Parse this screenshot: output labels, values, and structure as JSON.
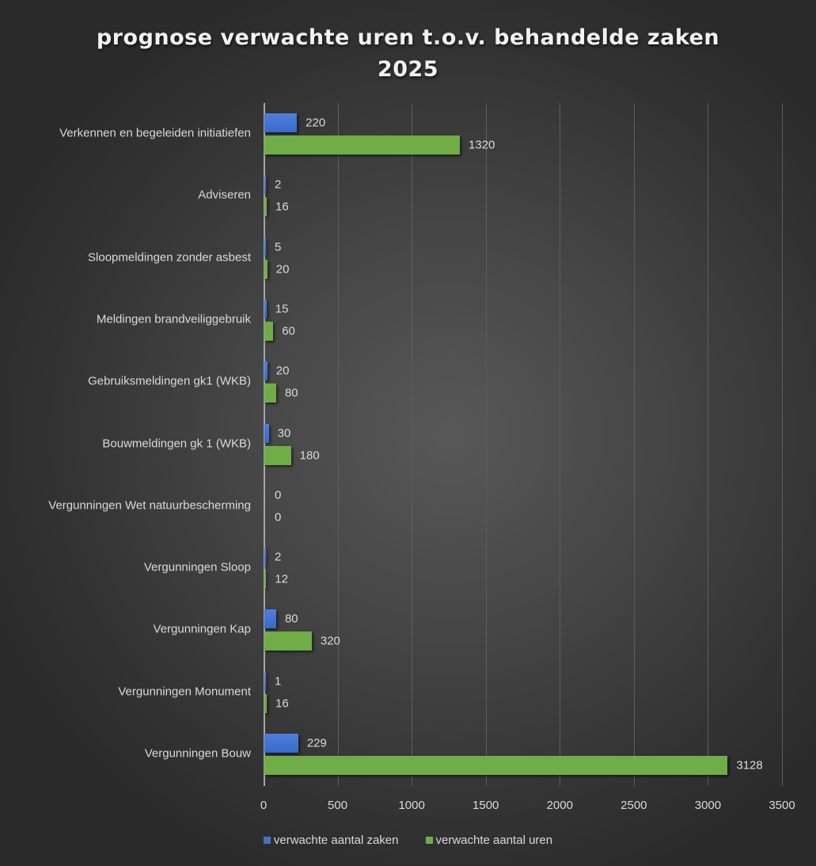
{
  "chart_data": {
    "type": "bar",
    "orientation": "horizontal",
    "title": "prognose verwachte uren t.o.v. behandelde zaken 2025",
    "title_lines": [
      "prognose verwachte uren t.o.v. behandelde zaken",
      "2025"
    ],
    "xlabel": "",
    "ylabel": "",
    "xlim": [
      0,
      3500
    ],
    "x_ticks": [
      "0",
      "500",
      "1000",
      "1500",
      "2000",
      "2500",
      "3000",
      "3500"
    ],
    "grid": true,
    "legend_position": "bottom",
    "categories": [
      "Verkennen en begeleiden initiatiefen",
      "Adviseren",
      "Sloopmeldingen zonder asbest",
      "Meldingen brandveiliggebruik",
      "Gebruiksmeldingen gk1 (WKB)",
      "Bouwmeldingen gk 1 (WKB)",
      "Vergunningen Wet natuurbescherming",
      "Vergunningen Sloop",
      "Vergunningen Kap",
      "Vergunningen Monument",
      "Vergunningen Bouw"
    ],
    "series": [
      {
        "name": "verwachte aantal zaken",
        "color": "#4472c4",
        "values": [
          220,
          2,
          5,
          15,
          20,
          30,
          0,
          2,
          80,
          1,
          229
        ]
      },
      {
        "name": "verwachte aantal uren",
        "color": "#70ad47",
        "values": [
          1320,
          16,
          20,
          60,
          80,
          180,
          0,
          12,
          320,
          16,
          3128
        ]
      }
    ]
  }
}
